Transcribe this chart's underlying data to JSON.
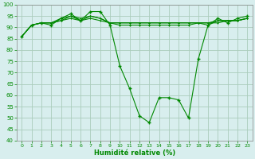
{
  "x": [
    0,
    1,
    2,
    3,
    4,
    5,
    6,
    7,
    8,
    9,
    10,
    11,
    12,
    13,
    14,
    15,
    16,
    17,
    18,
    19,
    20,
    21,
    22,
    23
  ],
  "line1": [
    86,
    91,
    92,
    91,
    94,
    96,
    93,
    97,
    97,
    91,
    73,
    63,
    51,
    48,
    59,
    59,
    58,
    50,
    76,
    91,
    94,
    92,
    94,
    95
  ],
  "line2": [
    86,
    91,
    92,
    92,
    93,
    94,
    93,
    94,
    93,
    92,
    92,
    92,
    92,
    92,
    92,
    92,
    92,
    92,
    92,
    92,
    92,
    93,
    93,
    94
  ],
  "line3": [
    86,
    91,
    92,
    92,
    94,
    95,
    94,
    95,
    94,
    92,
    91,
    91,
    91,
    91,
    91,
    91,
    91,
    91,
    92,
    92,
    93,
    93,
    93,
    94
  ],
  "line4": [
    86,
    91,
    92,
    92,
    93,
    95,
    93,
    95,
    94,
    92,
    92,
    92,
    92,
    92,
    92,
    92,
    92,
    92,
    92,
    91,
    93,
    93,
    93,
    94
  ],
  "bg_color": "#d8eeee",
  "grid_color": "#aaccbb",
  "line_color": "#008800",
  "xlabel": "Humidité relative (%)",
  "ylim": [
    40,
    100
  ],
  "xlim": [
    -0.5,
    23.5
  ],
  "yticks": [
    40,
    45,
    50,
    55,
    60,
    65,
    70,
    75,
    80,
    85,
    90,
    95,
    100
  ],
  "xticks": [
    0,
    1,
    2,
    3,
    4,
    5,
    6,
    7,
    8,
    9,
    10,
    11,
    12,
    13,
    14,
    15,
    16,
    17,
    18,
    19,
    20,
    21,
    22,
    23
  ]
}
